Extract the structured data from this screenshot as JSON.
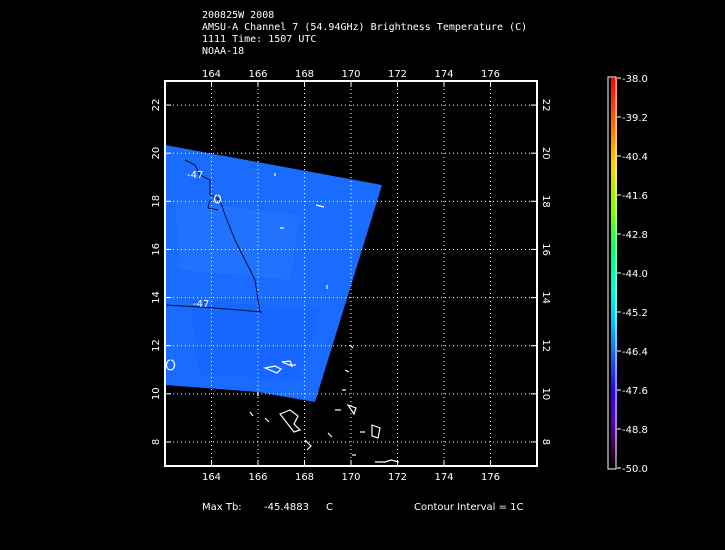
{
  "header": {
    "line1": "200825W 2008",
    "line2": "AMSU-A Channel 7 (54.94GHz) Brightness Temperature (C)",
    "line3": "1111 Time: 1507 UTC",
    "line4": "NOAA-18"
  },
  "map": {
    "lon_ticks": [
      "164",
      "166",
      "168",
      "170",
      "172",
      "174",
      "176"
    ],
    "lat_ticks": [
      "8",
      "10",
      "12",
      "14",
      "16",
      "18",
      "20",
      "22"
    ],
    "lon_range": [
      162,
      178
    ],
    "lat_range": [
      7,
      23
    ],
    "contour_labels": [
      "-47",
      "-47"
    ],
    "swath_color": "#1a6cff",
    "grid": true
  },
  "colorbar": {
    "labels": [
      "-38.0",
      "-39.2",
      "-40.4",
      "-41.6",
      "-42.8",
      "-44.0",
      "-45.2",
      "-46.4",
      "-47.6",
      "-48.8",
      "-50.0"
    ]
  },
  "footer": {
    "max_label": "Max Tb:",
    "max_value": "-45.4883",
    "max_unit": "C",
    "contour": "Contour Interval = 1C"
  }
}
